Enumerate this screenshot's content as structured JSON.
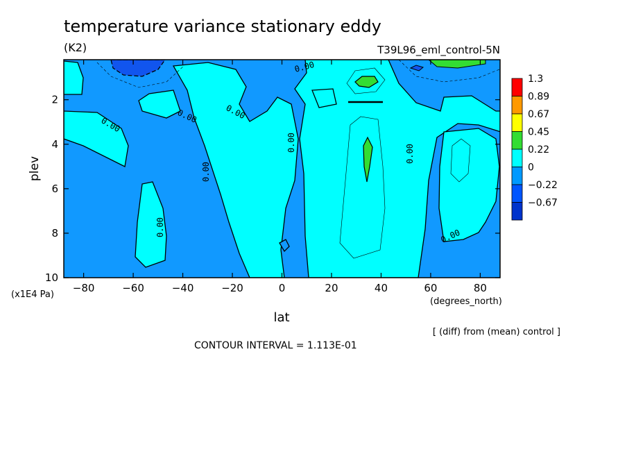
{
  "header": {
    "title": "temperature variance stationary eddy",
    "units": "(K2)",
    "dataset": "T39L96_eml_control-5N",
    "diff_note": "[ (diff) from (mean) control ]",
    "contour_interval": "CONTOUR INTERVAL = 1.113E-01"
  },
  "chart_data": {
    "type": "heatmap",
    "title": "temperature variance stationary eddy",
    "xlabel": "lat",
    "x_unit": "(degrees_north)",
    "ylabel": "plev",
    "y_unit": "(x1E4 Pa)",
    "xlim": [
      -88,
      88
    ],
    "ylim": [
      10,
      0.2
    ],
    "y_inverted": true,
    "x_ticks": [
      -80,
      -60,
      -40,
      -20,
      0,
      20,
      40,
      60,
      80
    ],
    "x_tick_labels": [
      "−80",
      "−60",
      "−40",
      "−20",
      "0",
      "20",
      "40",
      "60",
      "80"
    ],
    "y_ticks": [
      2,
      4,
      6,
      8,
      10
    ],
    "y_tick_labels": [
      "2",
      "4",
      "6",
      "8",
      "10"
    ],
    "colorbar": {
      "labels": [
        "1.3",
        "0.89",
        "0.67",
        "0.45",
        "0.22",
        "0",
        "−0.22",
        "−0.67"
      ],
      "colors": [
        "#ff0000",
        "#ff9900",
        "#ffff00",
        "#33dd33",
        "#00ffff",
        "#0099ff",
        "#0055ff",
        "#0033cc"
      ]
    },
    "field_colors": {
      "negative_strong": "#1155ee",
      "negative": "#1199ff",
      "near_zero": "#00ffff",
      "positive": "#33dd33"
    },
    "contour_labels": [
      "0.00",
      "0.00",
      "0.00",
      "0.00",
      "0.00",
      "0.00",
      "0.00",
      "0.00",
      "0.00"
    ],
    "regions": [
      {
        "level": "negative",
        "lat": [
          -88,
          88
        ],
        "plev": [
          0.2,
          10
        ]
      },
      {
        "level": "near_zero",
        "lat": [
          12,
          55
        ],
        "plev": [
          0.3,
          10
        ]
      },
      {
        "level": "near_zero",
        "lat": [
          -88,
          -78
        ],
        "plev": [
          0.2,
          1.5
        ]
      },
      {
        "level": "near_zero",
        "lat": [
          -60,
          -52
        ],
        "plev": [
          1.8,
          2.8
        ]
      },
      {
        "level": "near_zero",
        "lat": [
          -32,
          2
        ],
        "plev": [
          0.4,
          10
        ]
      },
      {
        "level": "near_zero",
        "lat": [
          -58,
          -43
        ],
        "plev": [
          5.6,
          9.5
        ]
      },
      {
        "level": "near_zero",
        "lat": [
          62,
          86
        ],
        "plev": [
          1.5,
          8.4
        ]
      },
      {
        "level": "positive",
        "lat": [
          32,
          37
        ],
        "plev": [
          0.7,
          1.2
        ]
      },
      {
        "level": "positive",
        "lat": [
          32,
          36
        ],
        "plev": [
          3.8,
          5.6
        ]
      },
      {
        "level": "negative_strong",
        "lat": [
          -72,
          -55
        ],
        "plev": [
          0.2,
          0.9
        ]
      }
    ]
  }
}
